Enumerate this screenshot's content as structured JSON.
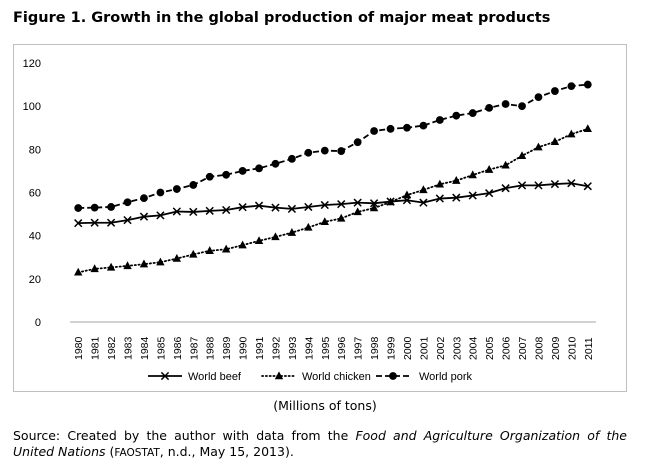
{
  "figure": {
    "title": "Figure 1. Growth in the global production of major meat products",
    "units_note": "(Millions of tons)",
    "source": {
      "prefix": "Source: Created by the author with data from the ",
      "org_italic": "Food and Agriculture Organization of the United Nations",
      "paren_open": " (",
      "abbr": "FAOSTAT",
      "suffix": ", n.d., May 15, 2013)."
    }
  },
  "chart_data": {
    "type": "line",
    "x": [
      "1980",
      "1981",
      "1982",
      "1983",
      "1984",
      "1985",
      "1986",
      "1987",
      "1988",
      "1989",
      "1990",
      "1991",
      "1992",
      "1993",
      "1994",
      "1995",
      "1996",
      "1997",
      "1998",
      "1999",
      "2000",
      "2001",
      "2002",
      "2003",
      "2004",
      "2005",
      "2006",
      "2007",
      "2008",
      "2009",
      "2010",
      "2011"
    ],
    "ylim": [
      0,
      120
    ],
    "yticks": [
      0,
      20,
      40,
      60,
      80,
      100,
      120
    ],
    "grid": false,
    "legend_position": "bottom",
    "series": [
      {
        "name": "World beef",
        "marker": "x",
        "line": "solid",
        "values": [
          45.8,
          46.0,
          46.0,
          47.2,
          48.8,
          49.4,
          51.2,
          51.0,
          51.5,
          51.9,
          53.2,
          53.9,
          53.0,
          52.4,
          53.3,
          54.2,
          54.6,
          55.3,
          55.0,
          55.8,
          56.4,
          55.3,
          57.2,
          57.6,
          58.6,
          59.7,
          62.0,
          63.3,
          63.3,
          63.9,
          64.3,
          62.9
        ]
      },
      {
        "name": "World chicken",
        "marker": "triangle",
        "line": "dotted",
        "values": [
          23.0,
          24.6,
          25.3,
          26.0,
          26.8,
          27.7,
          29.4,
          31.3,
          33.0,
          33.7,
          35.6,
          37.6,
          39.4,
          41.4,
          43.8,
          46.4,
          48.0,
          51.0,
          52.8,
          55.6,
          58.8,
          61.2,
          63.8,
          65.5,
          68.1,
          70.6,
          72.6,
          77.0,
          81.0,
          83.5,
          87.0,
          89.5
        ]
      },
      {
        "name": "World pork",
        "marker": "circle",
        "line": "dashed",
        "values": [
          52.8,
          53.0,
          53.3,
          55.5,
          57.4,
          60.0,
          61.6,
          63.5,
          67.3,
          68.2,
          70.0,
          71.2,
          73.3,
          75.6,
          78.4,
          79.4,
          79.2,
          83.3,
          88.5,
          89.5,
          90.0,
          91.0,
          93.6,
          95.6,
          96.8,
          99.2,
          101.0,
          100.0,
          104.2,
          107.0,
          109.3,
          110.0
        ]
      }
    ],
    "colors": {
      "lines": "#000000",
      "frame": "#bfbfbf",
      "axis": "#a6a6a6"
    }
  }
}
